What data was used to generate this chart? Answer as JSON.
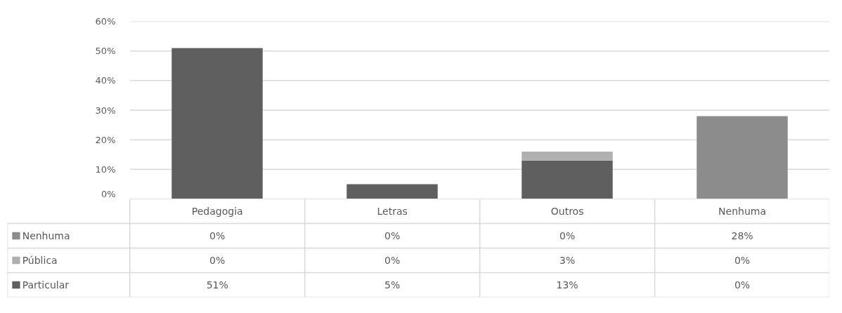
{
  "chart_data": {
    "type": "bar",
    "stacked": true,
    "categories": [
      "Pedagogia",
      "Letras",
      "Outros",
      "Nenhuma"
    ],
    "series": [
      {
        "name": "Particular",
        "color": "#5f5f5f",
        "values": [
          51,
          5,
          13,
          0
        ],
        "value_labels": [
          "51%",
          "5%",
          "13%",
          "0%"
        ]
      },
      {
        "name": "Pública",
        "color": "#b0b0b0",
        "values": [
          0,
          0,
          3,
          0
        ],
        "value_labels": [
          "0%",
          "0%",
          "3%",
          "0%"
        ]
      },
      {
        "name": "Nenhuma",
        "color": "#8c8c8c",
        "values": [
          0,
          0,
          0,
          28
        ],
        "value_labels": [
          "0%",
          "0%",
          "0%",
          "28%"
        ]
      }
    ],
    "ylim": [
      0,
      60
    ],
    "yticks": [
      {
        "value": 0,
        "label": "0%"
      },
      {
        "value": 10,
        "label": "10%"
      },
      {
        "value": 20,
        "label": "20%"
      },
      {
        "value": 30,
        "label": "30%"
      },
      {
        "value": 40,
        "label": "40%"
      },
      {
        "value": 50,
        "label": "50%"
      },
      {
        "value": 60,
        "label": "60%"
      }
    ],
    "grid": "y",
    "legend": "bottom left"
  }
}
